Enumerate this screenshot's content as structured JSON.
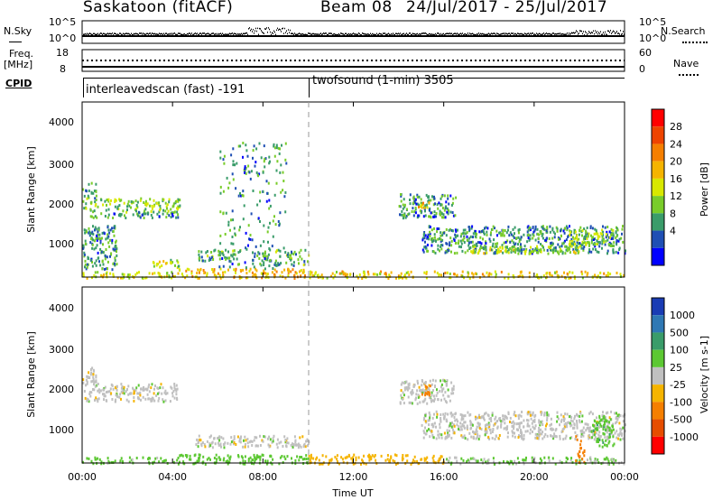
{
  "header": {
    "station": "Saskatoon (fitACF)",
    "beam": "Beam 08",
    "date_range": "24/Jul/2017 - 25/Jul/2017"
  },
  "strip_labels": {
    "nsky": "N.Sky",
    "nsky_ticks": [
      "10^5",
      "10^0"
    ],
    "nsearch": "N.Search",
    "nsearch_ticks": [
      "10^5",
      "10^0"
    ],
    "freq_line1": "Freq.",
    "freq_line2": "[MHz]",
    "freq_ticks": [
      "18",
      "8"
    ],
    "nave": "Nave",
    "nave_ticks": [
      "60",
      "0"
    ],
    "cpid": "CPID"
  },
  "cpid_segments": [
    {
      "label": "interleavedscan (fast) -191"
    },
    {
      "label": "twofsound (1-min) 3505"
    }
  ],
  "x_axis": {
    "title": "Time UT",
    "ticks": [
      "00:00",
      "04:00",
      "08:00",
      "12:00",
      "16:00",
      "20:00",
      "00:00"
    ]
  },
  "panels": {
    "power": {
      "ylabel": "Slant Range [km]",
      "yticks": [
        "4000",
        "3000",
        "2000",
        "1000"
      ],
      "colorbar_label": "Power [dB]",
      "colorbar_ticks": [
        "28",
        "24",
        "20",
        "16",
        "12",
        "8",
        "4"
      ],
      "colors": [
        "#ff0000",
        "#ee4400",
        "#f57f00",
        "#f5b400",
        "#d8e800",
        "#79cc2a",
        "#3a9c6a",
        "#1f4fb4",
        "#0000ff"
      ]
    },
    "velocity": {
      "ylabel": "Slant Range [km]",
      "yticks": [
        "4000",
        "3000",
        "2000",
        "1000"
      ],
      "colorbar_label": "Velocity [m s-1]",
      "colorbar_ticks": [
        "1000",
        "500",
        "100",
        "25",
        "-25",
        "-100",
        "-500",
        "-1000"
      ],
      "colors": [
        "#1a3cb4",
        "#2f78b4",
        "#3a9c6a",
        "#5cc832",
        "#c0c0c0",
        "#f5b400",
        "#f57f00",
        "#e64d00",
        "#ff0000"
      ]
    }
  },
  "chart_data": [
    {
      "type": "heatmap",
      "title": "Power [dB]",
      "xlabel": "Time UT",
      "ylabel": "Slant Range [km]",
      "x_range_hours": [
        0,
        24
      ],
      "ylim": [
        180,
        4600
      ],
      "color_scale_db": [
        0,
        30
      ],
      "regions": [
        {
          "t": [
            0.0,
            4.2
          ],
          "range": [
            180,
            350
          ],
          "value_db": 14
        },
        {
          "t": [
            4.2,
            10.0
          ],
          "range": [
            180,
            420
          ],
          "value_db": 18
        },
        {
          "t": [
            10.0,
            24.0
          ],
          "range": [
            180,
            350
          ],
          "value_db": 16
        },
        {
          "t": [
            0.0,
            4.3
          ],
          "range": [
            1850,
            2200
          ],
          "value_db": 10
        },
        {
          "t": [
            0.0,
            4.3
          ],
          "range": [
            1700,
            1850
          ],
          "value_db": 6
        },
        {
          "t": [
            0.0,
            0.6
          ],
          "range": [
            2200,
            2600
          ],
          "value_db": 6
        },
        {
          "t": [
            0.0,
            1.5
          ],
          "range": [
            400,
            1500
          ],
          "value_db": 6
        },
        {
          "t": [
            3.0,
            4.3
          ],
          "range": [
            450,
            650
          ],
          "value_db": 12
        },
        {
          "t": [
            5.0,
            7.0
          ],
          "range": [
            600,
            900
          ],
          "value_db": 8
        },
        {
          "t": [
            7.5,
            10.0
          ],
          "range": [
            500,
            900
          ],
          "value_db": 8
        },
        {
          "t": [
            14.0,
            16.5
          ],
          "range": [
            1700,
            2300
          ],
          "value_db": 6
        },
        {
          "t": [
            14.8,
            15.4
          ],
          "range": [
            1900,
            2100
          ],
          "value_db": 18
        },
        {
          "t": [
            15.0,
            24.0
          ],
          "range": [
            800,
            1500
          ],
          "value_db": 6
        },
        {
          "t": [
            17.0,
            22.0
          ],
          "range": [
            800,
            1000
          ],
          "value_db": 12
        },
        {
          "t": [
            21.5,
            23.5
          ],
          "range": [
            1000,
            1400
          ],
          "value_db": 10
        },
        {
          "t": [
            6.0,
            9.0
          ],
          "range": [
            400,
            3600
          ],
          "value_db": 6
        }
      ]
    },
    {
      "type": "heatmap",
      "title": "Velocity [m s-1]",
      "xlabel": "Time UT",
      "ylabel": "Slant Range [km]",
      "x_range_hours": [
        0,
        24
      ],
      "ylim": [
        180,
        4600
      ],
      "color_scale_ms": [
        -1000,
        1000
      ],
      "regions": [
        {
          "t": [
            0.0,
            4.3
          ],
          "range": [
            1750,
            2200
          ],
          "value_ms": 0
        },
        {
          "t": [
            0.0,
            0.6
          ],
          "range": [
            2200,
            2600
          ],
          "value_ms": 0
        },
        {
          "t": [
            0.0,
            4.3
          ],
          "range": [
            180,
            350
          ],
          "value_ms": 50
        },
        {
          "t": [
            4.2,
            10.0
          ],
          "range": [
            180,
            420
          ],
          "value_ms": 60
        },
        {
          "t": [
            10.0,
            16.0
          ],
          "range": [
            180,
            420
          ],
          "value_ms": -60
        },
        {
          "t": [
            16.0,
            24.0
          ],
          "range": [
            180,
            350
          ],
          "value_ms": 30
        },
        {
          "t": [
            5.0,
            10.0
          ],
          "range": [
            600,
            900
          ],
          "value_ms": 0
        },
        {
          "t": [
            14.0,
            16.5
          ],
          "range": [
            1700,
            2300
          ],
          "value_ms": 0
        },
        {
          "t": [
            15.0,
            15.4
          ],
          "range": [
            1900,
            2200
          ],
          "value_ms": -300
        },
        {
          "t": [
            15.0,
            24.0
          ],
          "range": [
            800,
            1500
          ],
          "value_ms": 0
        },
        {
          "t": [
            22.5,
            23.5
          ],
          "range": [
            600,
            1400
          ],
          "value_ms": 80
        },
        {
          "t": [
            21.8,
            22.2
          ],
          "range": [
            200,
            900
          ],
          "value_ms": -300
        }
      ]
    }
  ]
}
